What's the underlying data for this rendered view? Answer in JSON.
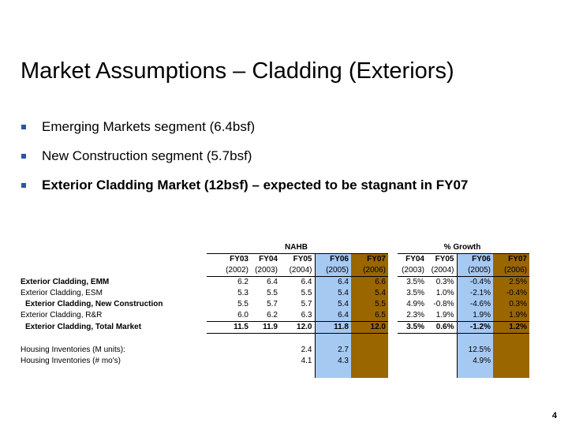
{
  "title": "Market Assumptions – Cladding (Exteriors)",
  "bullets": [
    {
      "text": "Emerging Markets segment (6.4bsf)"
    },
    {
      "text": "New Construction segment (5.7bsf)"
    },
    {
      "text": "Exterior Cladding Market (12bsf) – expected to be stagnant in FY07"
    }
  ],
  "table": {
    "group_nahb": "NAHB",
    "group_growth": "% Growth",
    "nahb_years": [
      "FY03",
      "FY04",
      "FY05",
      "FY06",
      "FY07"
    ],
    "nahb_sub": [
      "(2002)",
      "(2003)",
      "(2004)",
      "(2005)",
      "(2006)"
    ],
    "growth_years": [
      "FY04",
      "FY05",
      "FY06",
      "FY07"
    ],
    "growth_sub": [
      "(2003)",
      "(2004)",
      "(2005)",
      "(2006)"
    ],
    "rows": [
      {
        "label": "Exterior Cladding, EMM",
        "n": [
          "6.2",
          "6.4",
          "6.4",
          "6.4",
          "6.6"
        ],
        "g": [
          "3.5%",
          "0.3%",
          "-0.4%",
          "2.5%"
        ]
      },
      {
        "label": "Exterior Cladding, ESM",
        "n": [
          "5.3",
          "5.5",
          "5.5",
          "5.4",
          "5.4"
        ],
        "g": [
          "3.5%",
          "1.0%",
          "-2.1%",
          "-0.4%"
        ]
      },
      {
        "label": "Exterior Cladding, New Construction",
        "n": [
          "5.5",
          "5.7",
          "5.7",
          "5.4",
          "5.5"
        ],
        "g": [
          "4.9%",
          "-0.8%",
          "-4.6%",
          "0.3%"
        ]
      },
      {
        "label": "Exterior Cladding, R&R",
        "n": [
          "6.0",
          "6.2",
          "6.3",
          "6.4",
          "6.5"
        ],
        "g": [
          "2.3%",
          "1.9%",
          "1.9%",
          "1.9%"
        ]
      },
      {
        "label": "Exterior Cladding, Total Market",
        "n": [
          "11.5",
          "11.9",
          "12.0",
          "11.8",
          "12.0"
        ],
        "g": [
          "3.5%",
          "0.6%",
          "-1.2%",
          "1.2%"
        ]
      }
    ],
    "inventory": [
      {
        "label": "Housing Inventories (M units):",
        "fy05": "2.4",
        "fy06": "2.7",
        "growth_fy06": "12.5%"
      },
      {
        "label": "Housing Inventories (# mo's)",
        "fy05": "4.1",
        "fy06": "4.3",
        "growth_fy06": "4.9%"
      }
    ]
  },
  "page_number": "4",
  "colors": {
    "fy06_fill": "#a6c9f2",
    "fy07_fill": "#996600",
    "bullet": "#2a55a6"
  }
}
